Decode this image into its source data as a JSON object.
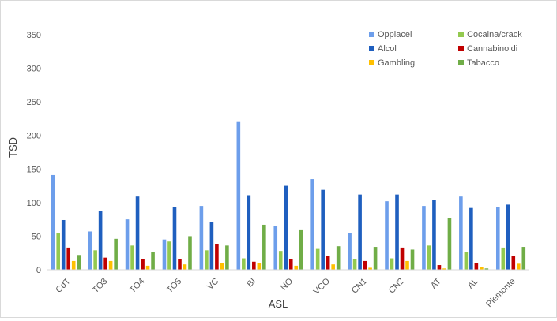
{
  "chart_data": {
    "type": "bar",
    "xlabel": "ASL",
    "ylabel": "TSD",
    "ylim": [
      0,
      350
    ],
    "yticks": [
      0,
      50,
      100,
      150,
      200,
      250,
      300,
      350
    ],
    "grid": false,
    "legend_position": "top-right",
    "categories": [
      "CdT",
      "TO3",
      "TO4",
      "TO5",
      "VC",
      "BI",
      "NO",
      "VCO",
      "CN1",
      "CN2",
      "AT",
      "AL",
      "Piemonte"
    ],
    "series": [
      {
        "name": "Oppiacei",
        "color": "#6d9eeb",
        "values": [
          141,
          57,
          75,
          45,
          95,
          220,
          65,
          135,
          55,
          102,
          95,
          109,
          93
        ]
      },
      {
        "name": "Cocaina/crack",
        "color": "#93c94f",
        "values": [
          54,
          29,
          36,
          42,
          29,
          17,
          28,
          31,
          16,
          17,
          36,
          27,
          33
        ]
      },
      {
        "name": "Alcol",
        "color": "#1f5fbf",
        "values": [
          74,
          88,
          109,
          93,
          71,
          111,
          125,
          119,
          112,
          112,
          104,
          92,
          97
        ]
      },
      {
        "name": "Cannabinoidi",
        "color": "#c00000",
        "values": [
          33,
          18,
          16,
          16,
          38,
          12,
          16,
          21,
          13,
          33,
          7,
          10,
          21
        ]
      },
      {
        "name": "Gambling",
        "color": "#ffc000",
        "values": [
          13,
          13,
          6,
          8,
          10,
          10,
          6,
          8,
          3,
          13,
          2,
          4,
          9
        ]
      },
      {
        "name": "Tabacco",
        "color": "#70ad47",
        "values": [
          22,
          46,
          26,
          50,
          36,
          67,
          60,
          35,
          34,
          30,
          77,
          2,
          34
        ]
      }
    ]
  }
}
